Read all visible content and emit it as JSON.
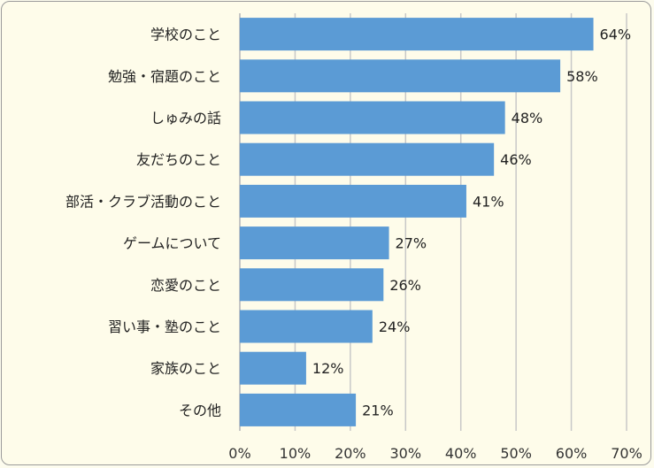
{
  "chart_data": {
    "type": "bar",
    "orientation": "horizontal",
    "categories": [
      "学校のこと",
      "勉強・宿題のこと",
      "しゅみの話",
      "友だちのこと",
      "部活・クラブ活動のこと",
      "ゲームについて",
      "恋愛のこと",
      "習い事・塾のこと",
      "家族のこと",
      "その他"
    ],
    "values": [
      64,
      58,
      48,
      46,
      41,
      27,
      26,
      24,
      12,
      21
    ],
    "data_labels": [
      "64%",
      "58%",
      "48%",
      "46%",
      "41%",
      "27%",
      "26%",
      "24%",
      "12%",
      "21%"
    ],
    "xlim": [
      0,
      70
    ],
    "x_ticks": [
      "0%",
      "10%",
      "20%",
      "30%",
      "40%",
      "50%",
      "60%",
      "70%"
    ],
    "grid": "vertical",
    "bar_color": "#5b9bd5",
    "title": "",
    "xlabel": "",
    "ylabel": ""
  }
}
